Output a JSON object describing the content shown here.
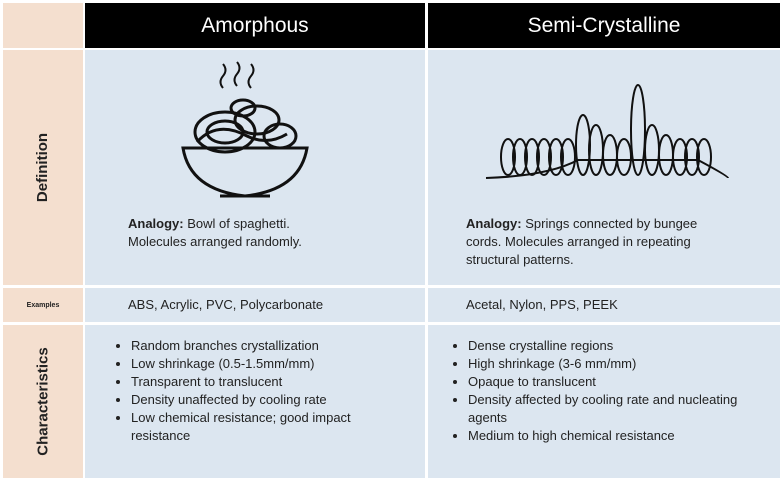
{
  "header": {
    "columns": [
      "Amorphous",
      "Semi-Crystalline"
    ]
  },
  "rows": [
    {
      "label": "Definition",
      "cells": [
        {
          "analogy_label": "Analogy:",
          "text": "Bowl of spaghetti. Molecules arranged randomly."
        },
        {
          "analogy_label": "Analogy:",
          "text": "Springs connected by bungee cords. Molecules arranged in repeating structural patterns."
        }
      ]
    },
    {
      "label": "Examples",
      "cells": [
        "ABS, Acrylic, PVC, Polycarbonate",
        "Acetal, Nylon, PPS, PEEK"
      ]
    },
    {
      "label": "Characteristics",
      "cells": [
        [
          "Random branches crystallization",
          "Low shrinkage (0.5-1.5mm/mm)",
          "Transparent to translucent",
          "Density unaffected by cooling rate",
          "Low chemical resistance; good impact resistance"
        ],
        [
          "Dense crystalline regions",
          "High shrinkage (3-6 mm/mm)",
          "Opaque to translucent",
          "Density affected by cooling rate and nucleating agents",
          "Medium to high chemical resistance"
        ]
      ]
    }
  ]
}
